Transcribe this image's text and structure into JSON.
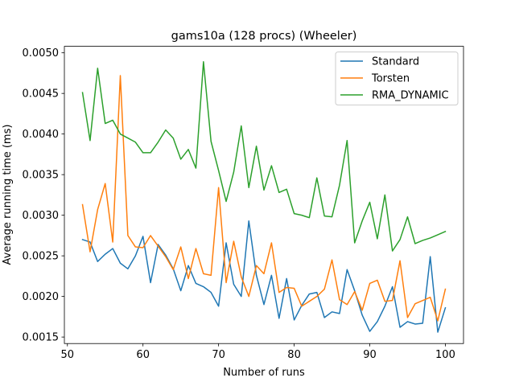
{
  "chart_data": {
    "type": "line",
    "title": "gams10a (128 procs) (Wheeler)",
    "xlabel": "Number of runs",
    "ylabel": "Average running time (ms)",
    "xlim": [
      49.6,
      102.4
    ],
    "ylim": [
      0.00142,
      0.00508
    ],
    "xticks": [
      50,
      60,
      70,
      80,
      90,
      100
    ],
    "xtick_labels": [
      "50",
      "60",
      "70",
      "80",
      "90",
      "100"
    ],
    "yticks": [
      0.0015,
      0.002,
      0.0025,
      0.003,
      0.0035,
      0.004,
      0.0045,
      0.005
    ],
    "ytick_labels": [
      "0.0015",
      "0.0020",
      "0.0025",
      "0.0030",
      "0.0035",
      "0.0040",
      "0.0045",
      "0.0050"
    ],
    "grid": false,
    "legend_position": "top-right",
    "x": [
      52,
      53,
      54,
      55,
      56,
      57,
      58,
      59,
      60,
      61,
      62,
      63,
      64,
      65,
      66,
      67,
      68,
      69,
      70,
      71,
      72,
      73,
      74,
      75,
      76,
      77,
      78,
      79,
      80,
      81,
      82,
      83,
      84,
      85,
      86,
      87,
      88,
      89,
      90,
      91,
      92,
      93,
      94,
      95,
      96,
      97,
      98,
      99,
      100
    ],
    "series": [
      {
        "name": "Standard",
        "color": "#1f77b4",
        "values": [
          0.0027,
          0.00267,
          0.00243,
          0.00252,
          0.00259,
          0.00241,
          0.00234,
          0.0025,
          0.00274,
          0.00217,
          0.00264,
          0.00251,
          0.00234,
          0.00207,
          0.00238,
          0.00216,
          0.00212,
          0.00205,
          0.00188,
          0.00266,
          0.00215,
          0.002,
          0.00293,
          0.00226,
          0.0019,
          0.00226,
          0.00173,
          0.00222,
          0.00171,
          0.00189,
          0.00203,
          0.00205,
          0.00174,
          0.00181,
          0.00179,
          0.00233,
          0.00207,
          0.00177,
          0.00157,
          0.00169,
          0.00188,
          0.00212,
          0.00162,
          0.00169,
          0.00166,
          0.00167,
          0.00249,
          0.00156,
          0.00186
        ]
      },
      {
        "name": "Torsten",
        "color": "#ff7f0e",
        "values": [
          0.00313,
          0.00255,
          0.00307,
          0.00339,
          0.00267,
          0.00472,
          0.00275,
          0.00261,
          0.0026,
          0.00275,
          0.00262,
          0.00249,
          0.00233,
          0.00261,
          0.00222,
          0.00259,
          0.00228,
          0.00226,
          0.00334,
          0.00217,
          0.00268,
          0.00224,
          0.002,
          0.00238,
          0.00228,
          0.00266,
          0.00205,
          0.00211,
          0.0021,
          0.00188,
          0.00194,
          0.002,
          0.00209,
          0.00245,
          0.00196,
          0.0019,
          0.00206,
          0.00183,
          0.00216,
          0.0022,
          0.00194,
          0.00195,
          0.00244,
          0.00174,
          0.00191,
          0.00195,
          0.00199,
          0.0017,
          0.00209
        ]
      },
      {
        "name": "RMA_DYNAMIC",
        "color": "#2ca02c",
        "values": [
          0.00451,
          0.00392,
          0.00481,
          0.00413,
          0.00417,
          0.004,
          0.00395,
          0.0039,
          0.00377,
          0.00377,
          0.0039,
          0.00405,
          0.00395,
          0.00369,
          0.00381,
          0.00358,
          0.00489,
          0.00391,
          0.00355,
          0.00317,
          0.00353,
          0.0041,
          0.00334,
          0.00385,
          0.00331,
          0.00361,
          0.00328,
          0.00332,
          0.00302,
          0.003,
          0.00297,
          0.00346,
          0.00299,
          0.00298,
          0.00337,
          0.00392,
          0.00266,
          0.00293,
          0.00316,
          0.00271,
          0.00325,
          0.00256,
          0.0027,
          0.00298,
          0.00265,
          0.00269,
          0.00272,
          0.00276,
          0.0028
        ]
      }
    ]
  }
}
